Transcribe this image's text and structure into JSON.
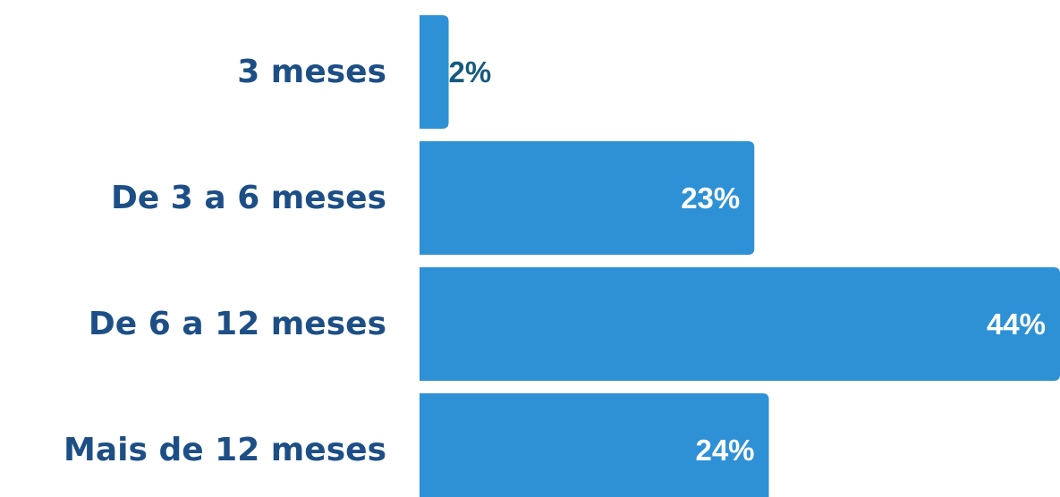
{
  "chart_data": {
    "type": "bar",
    "orientation": "horizontal",
    "categories": [
      "3 meses",
      "De 3 a 6 meses",
      "De 6 a 12 meses",
      "Mais de 12 meses"
    ],
    "values": [
      2,
      23,
      44,
      24
    ],
    "value_labels": [
      "2%",
      "23%",
      "44%",
      "24%"
    ],
    "title": "",
    "xlabel": "",
    "ylabel": "",
    "xlim": [
      0,
      44
    ],
    "grid": false,
    "legend": "none"
  },
  "colors": {
    "bar": "#2e91d6",
    "category_text": "#1d4f86",
    "label_inside": "#ffffff",
    "label_outside": "#155a7e"
  }
}
